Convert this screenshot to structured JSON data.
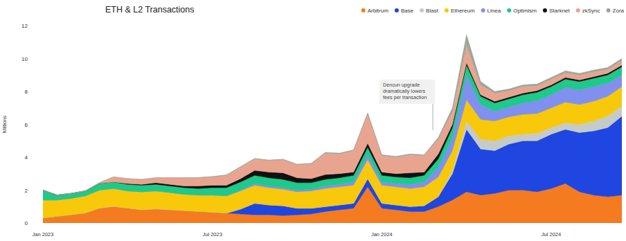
{
  "chart_data": {
    "type": "area",
    "title": "ETH & L2 Transactions",
    "y_label": "Millions",
    "annotation": [
      "Dencun upgrade",
      "dramatically lowers",
      "fees per transaction"
    ],
    "stacked": true,
    "grid": false,
    "legend": "top-right",
    "ylim": [
      0,
      12
    ],
    "yticks": [
      0,
      2,
      4,
      6,
      8,
      10,
      12
    ],
    "categories": [
      "Jan 2023",
      null,
      null,
      null,
      null,
      null,
      null,
      null,
      null,
      null,
      null,
      null,
      "Jul 2023",
      null,
      null,
      null,
      null,
      null,
      null,
      null,
      null,
      null,
      null,
      null,
      "Jan 2024",
      null,
      null,
      null,
      null,
      null,
      null,
      null,
      null,
      null,
      null,
      null,
      "Jul 2024",
      null,
      null,
      null,
      null,
      null
    ],
    "series": [
      {
        "name": "Arbitrum",
        "color": "#f47b20",
        "values": [
          0.3,
          0.4,
          0.5,
          0.6,
          0.9,
          1.0,
          0.9,
          0.8,
          0.85,
          0.8,
          0.75,
          0.7,
          0.65,
          0.6,
          0.55,
          0.5,
          0.5,
          0.45,
          0.5,
          0.55,
          0.7,
          0.8,
          0.9,
          2.2,
          0.9,
          0.8,
          0.7,
          0.7,
          1.0,
          1.4,
          1.9,
          1.7,
          1.8,
          2.0,
          2.0,
          1.9,
          2.1,
          2.4,
          1.9,
          1.7,
          1.6,
          1.7
        ]
      },
      {
        "name": "Base",
        "color": "#1f46e0",
        "values": [
          0,
          0,
          0,
          0,
          0,
          0,
          0,
          0,
          0,
          0,
          0,
          0,
          0,
          0,
          0.3,
          0.7,
          0.6,
          0.6,
          0.4,
          0.35,
          0.3,
          0.3,
          0.3,
          0.5,
          0.3,
          0.3,
          0.3,
          0.35,
          0.6,
          1.6,
          3.8,
          2.8,
          2.6,
          2.8,
          3.0,
          3.1,
          3.3,
          3.3,
          3.6,
          3.9,
          4.2,
          4.8
        ]
      },
      {
        "name": "Blast",
        "color": "#c5cbc8",
        "values": [
          0,
          0,
          0,
          0,
          0,
          0,
          0,
          0,
          0,
          0,
          0,
          0,
          0,
          0,
          0,
          0,
          0,
          0,
          0,
          0,
          0,
          0,
          0,
          0,
          0,
          0,
          0,
          0,
          0,
          0.2,
          0.5,
          0.6,
          0.6,
          0.5,
          0.4,
          0.45,
          0.4,
          0.4,
          0.5,
          0.6,
          0.7,
          0.6
        ]
      },
      {
        "name": "Ethereum",
        "color": "#f8c80a",
        "values": [
          1.1,
          1.0,
          1.0,
          1.05,
          1.1,
          1.1,
          1.05,
          1.1,
          1.1,
          1.05,
          1.0,
          1.0,
          1.05,
          1.05,
          1.1,
          1.1,
          1.05,
          1.0,
          1.0,
          1.05,
          1.1,
          1.1,
          1.1,
          1.15,
          1.1,
          1.1,
          1.1,
          1.15,
          1.2,
          1.2,
          1.3,
          1.2,
          1.2,
          1.15,
          1.2,
          1.2,
          1.2,
          1.25,
          1.2,
          1.2,
          1.2,
          1.2
        ]
      },
      {
        "name": "Linea",
        "color": "#7f90ee",
        "values": [
          0,
          0,
          0,
          0,
          0,
          0,
          0,
          0,
          0,
          0,
          0,
          0,
          0,
          0,
          0.05,
          0.1,
          0.1,
          0.1,
          0.1,
          0.1,
          0.15,
          0.15,
          0.2,
          0.3,
          0.2,
          0.2,
          0.25,
          0.3,
          0.6,
          0.8,
          1.5,
          0.9,
          0.6,
          0.6,
          0.7,
          0.8,
          0.8,
          0.9,
          0.9,
          0.9,
          0.8,
          0.7
        ]
      },
      {
        "name": "Optimism",
        "color": "#1ec98a",
        "values": [
          0.6,
          0.3,
          0.3,
          0.3,
          0.4,
          0.4,
          0.4,
          0.4,
          0.4,
          0.4,
          0.4,
          0.4,
          0.45,
          0.5,
          0.5,
          0.5,
          0.5,
          0.5,
          0.45,
          0.4,
          0.4,
          0.4,
          0.4,
          0.45,
          0.4,
          0.4,
          0.4,
          0.4,
          0.5,
          0.6,
          0.6,
          0.5,
          0.5,
          0.5,
          0.5,
          0.5,
          0.5,
          0.5,
          0.5,
          0.5,
          0.5,
          0.5
        ]
      },
      {
        "name": "Starknet",
        "color": "#111111",
        "values": [
          0,
          0,
          0,
          0,
          0,
          0,
          0.05,
          0.05,
          0.1,
          0.1,
          0.1,
          0.15,
          0.15,
          0.15,
          0.2,
          0.3,
          0.35,
          0.4,
          0.3,
          0.25,
          0.3,
          0.25,
          0.2,
          0.25,
          0.2,
          0.2,
          0.3,
          0.2,
          0.3,
          0.2,
          0.15,
          0.1,
          0.1,
          0.1,
          0.1,
          0.1,
          0.1,
          0.1,
          0.1,
          0.1,
          0.1,
          0.1
        ]
      },
      {
        "name": "zkSync",
        "color": "#e9a48f",
        "values": [
          0,
          0,
          0,
          0,
          0.05,
          0.3,
          0.3,
          0.3,
          0.3,
          0.4,
          0.5,
          0.5,
          0.5,
          0.6,
          0.7,
          0.7,
          0.7,
          0.8,
          0.8,
          0.9,
          1.3,
          1.2,
          1.3,
          1.8,
          1.0,
          1.0,
          1.1,
          1.0,
          0.9,
          0.8,
          1.1,
          0.6,
          0.5,
          0.4,
          0.4,
          0.3,
          0.35,
          0.3,
          0.3,
          0.3,
          0.25,
          0.3
        ]
      },
      {
        "name": "Zora",
        "color": "#9aa69c",
        "values": [
          0,
          0,
          0,
          0,
          0,
          0,
          0,
          0,
          0,
          0,
          0,
          0.02,
          0.03,
          0.03,
          0.03,
          0.03,
          0.03,
          0.03,
          0.03,
          0.03,
          0.05,
          0.05,
          0.05,
          0.05,
          0.05,
          0.05,
          0.05,
          0.05,
          0.1,
          0.2,
          0.6,
          0.2,
          0.1,
          0.1,
          0.1,
          0.1,
          0.1,
          0.1,
          0.1,
          0.1,
          0.1,
          0.1
        ]
      }
    ]
  }
}
